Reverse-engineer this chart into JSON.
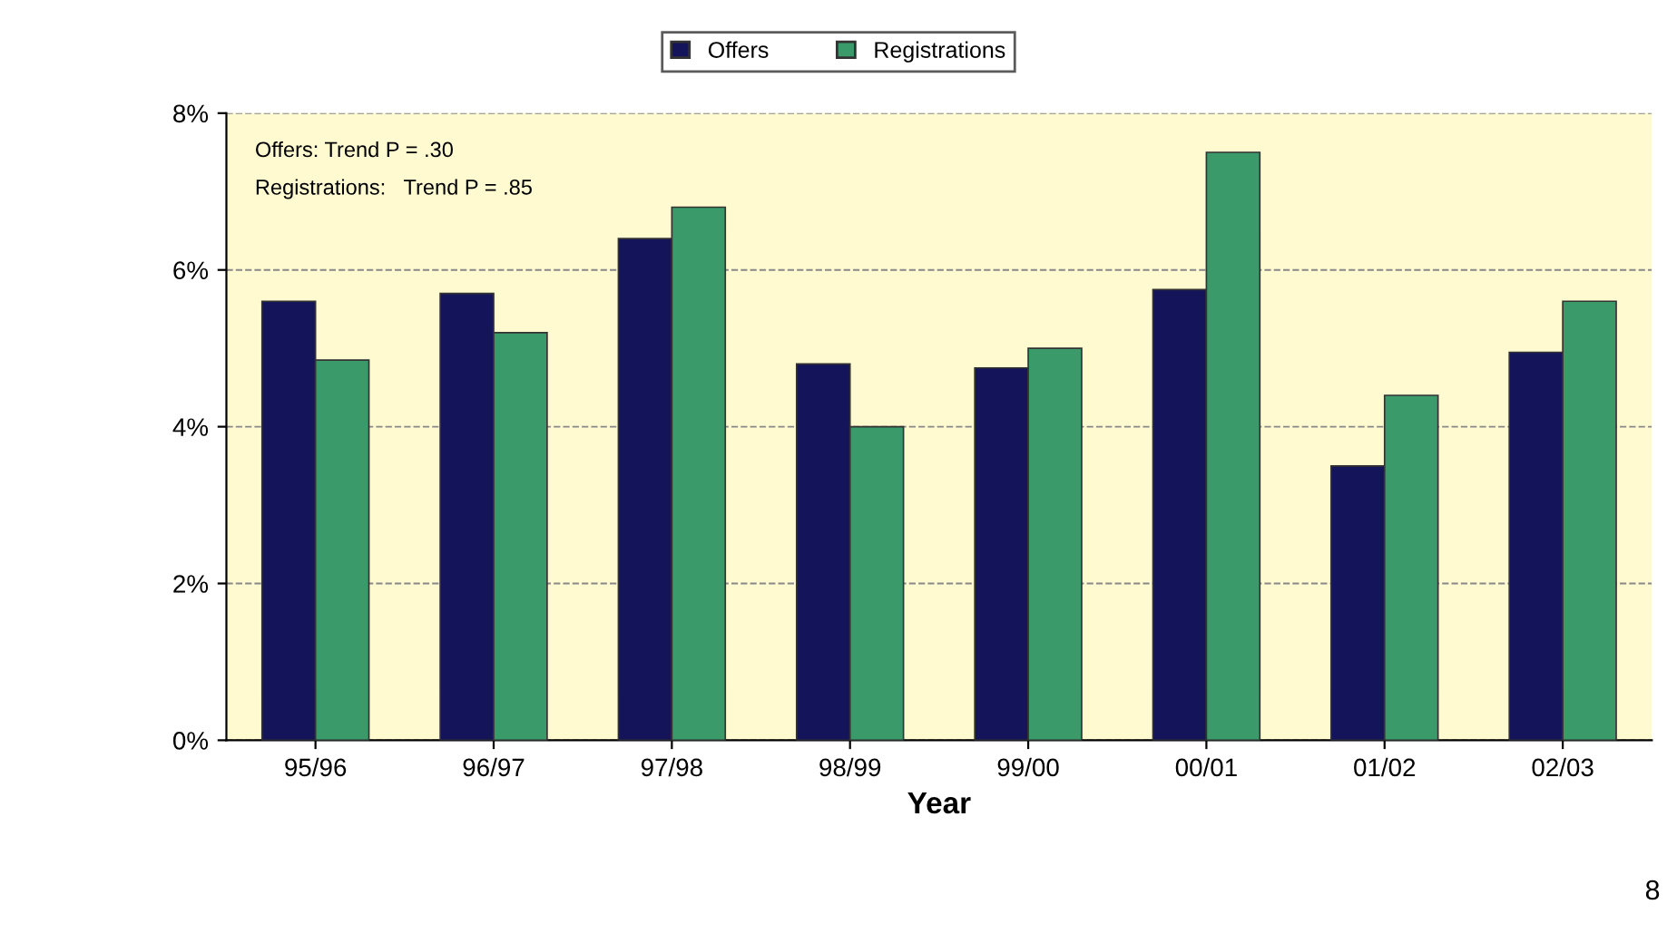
{
  "chart_data": {
    "type": "bar",
    "xlabel": "Year",
    "categories": [
      "95/96",
      "96/97",
      "97/98",
      "98/99",
      "99/00",
      "00/01",
      "01/02",
      "02/03"
    ],
    "series": [
      {
        "name": "Offers",
        "color": "#14145a",
        "values": [
          5.6,
          5.7,
          6.4,
          4.8,
          4.75,
          5.75,
          3.5,
          4.95
        ]
      },
      {
        "name": "Registrations",
        "color": "#3a9a6a",
        "values": [
          4.85,
          5.2,
          6.8,
          4.0,
          5.0,
          7.5,
          4.4,
          5.6
        ]
      }
    ],
    "ylim": [
      0,
      8
    ],
    "yticks": [
      {
        "value": 0,
        "label": "0%"
      },
      {
        "value": 2,
        "label": "2%"
      },
      {
        "value": 4,
        "label": "4%"
      },
      {
        "value": 6,
        "label": "6%"
      },
      {
        "value": 8,
        "label": "8%"
      }
    ],
    "grid": "y",
    "legend": "top",
    "annotations": [
      "Offers: Trend P = .30",
      "Registrations:   Trend P = .85",
      "8"
    ]
  }
}
